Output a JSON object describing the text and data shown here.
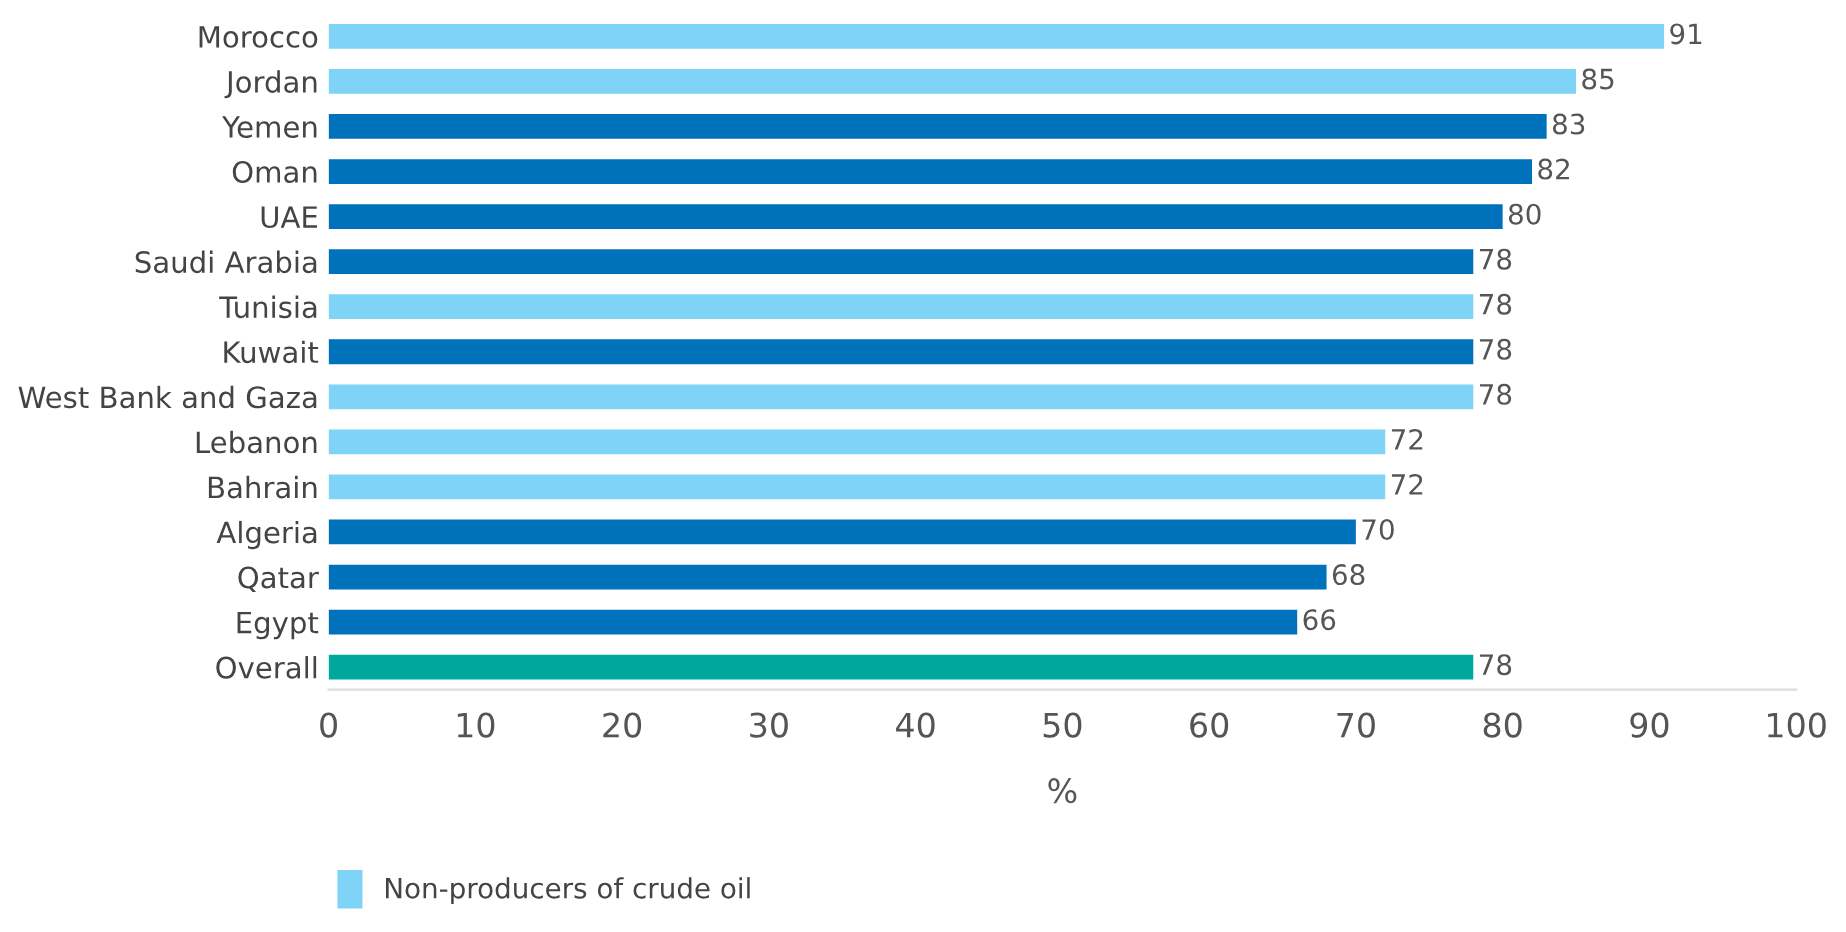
{
  "chart_data": {
    "type": "bar",
    "orientation": "horizontal",
    "xlabel": "%",
    "categories": [
      "Morocco",
      "Jordan",
      "Yemen",
      "Oman",
      "UAE",
      "Saudi Arabia",
      "Tunisia",
      "Kuwait",
      "West Bank and Gaza",
      "Lebanon",
      "Bahrain",
      "Algeria",
      "Qatar",
      "Egypt",
      "Overall"
    ],
    "series": [
      {
        "name": "Non-producers of crude oil",
        "color": "#7fd3f7",
        "values": [
          91,
          85,
          null,
          null,
          null,
          null,
          78,
          null,
          78,
          72,
          72,
          null,
          null,
          null,
          null
        ]
      },
      {
        "color": "#0072bc",
        "values": [
          null,
          null,
          83,
          82,
          80,
          78,
          null,
          78,
          null,
          null,
          null,
          70,
          68,
          66,
          null
        ]
      },
      {
        "color": "#00a79d",
        "values": [
          null,
          null,
          null,
          null,
          null,
          null,
          null,
          null,
          null,
          null,
          null,
          null,
          null,
          null,
          78
        ]
      }
    ],
    "xlim": [
      0,
      100
    ],
    "xticks": [
      0,
      10,
      20,
      30,
      40,
      50,
      60,
      70,
      80,
      90,
      100
    ],
    "data_labels": true,
    "grid": false,
    "legend": "bottom left"
  }
}
